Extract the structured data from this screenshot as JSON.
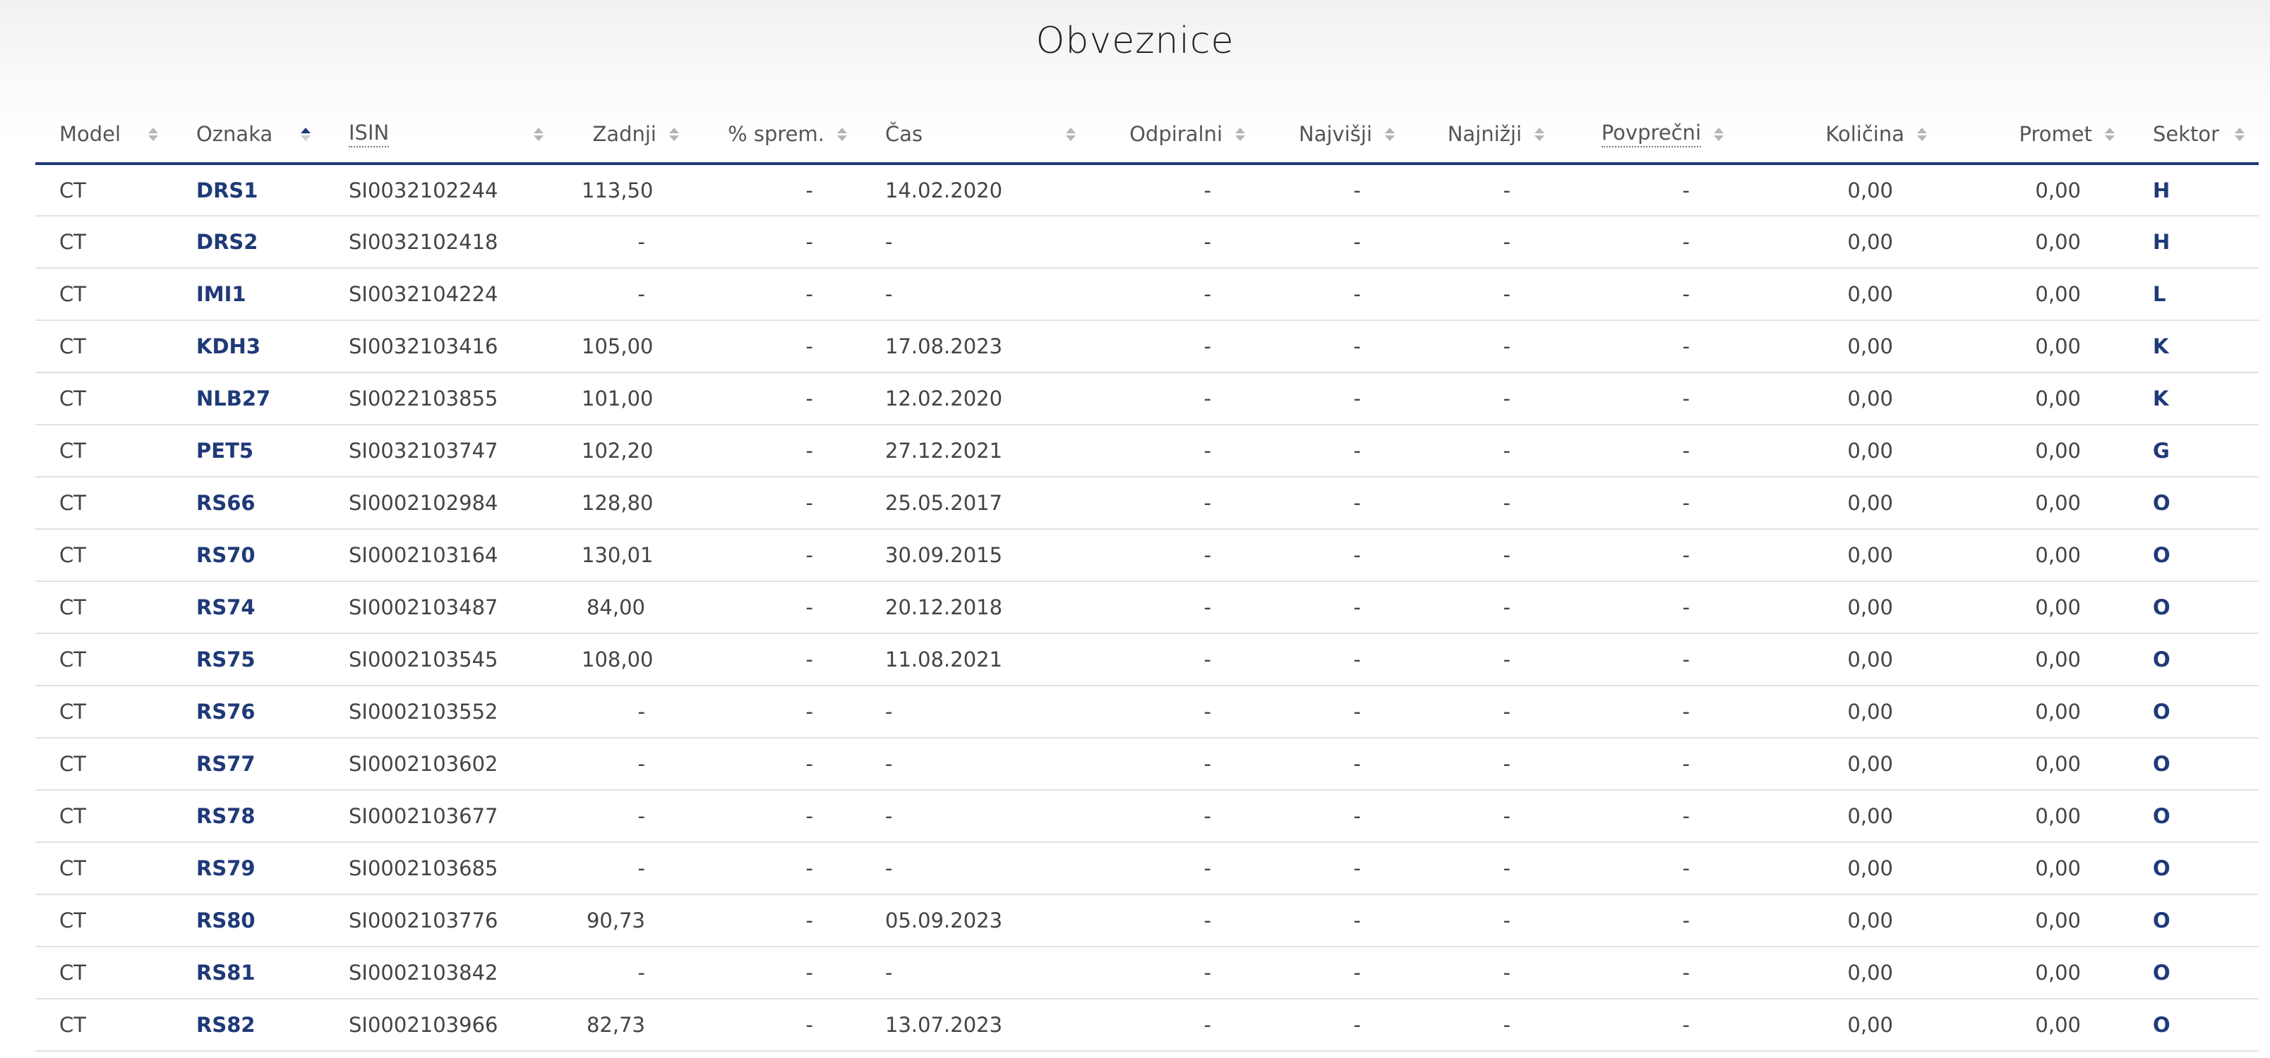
{
  "page": {
    "title": "Obveznice"
  },
  "table": {
    "columns": [
      {
        "key": "model",
        "label": "Model",
        "align": "left",
        "abbr": false,
        "sort": "none"
      },
      {
        "key": "oznaka",
        "label": "Oznaka",
        "align": "left",
        "abbr": false,
        "sort": "asc"
      },
      {
        "key": "isin",
        "label": "ISIN",
        "align": "left",
        "abbr": true,
        "sort": "none"
      },
      {
        "key": "zadnji",
        "label": "Zadnji",
        "align": "right",
        "abbr": false,
        "sort": "none"
      },
      {
        "key": "sprem",
        "label": "% sprem.",
        "align": "right",
        "abbr": false,
        "sort": "none"
      },
      {
        "key": "cas",
        "label": "Čas",
        "align": "left",
        "abbr": false,
        "sort": "none"
      },
      {
        "key": "odpiralni",
        "label": "Odpiralni",
        "align": "right",
        "abbr": false,
        "sort": "none"
      },
      {
        "key": "najvisji",
        "label": "Najvišji",
        "align": "right",
        "abbr": false,
        "sort": "none"
      },
      {
        "key": "najnizji",
        "label": "Najnižji",
        "align": "right",
        "abbr": false,
        "sort": "none"
      },
      {
        "key": "povprecni",
        "label": "Povprečni",
        "align": "right",
        "abbr": true,
        "sort": "none"
      },
      {
        "key": "kolicina",
        "label": "Količina",
        "align": "right",
        "abbr": false,
        "sort": "none"
      },
      {
        "key": "promet",
        "label": "Promet",
        "align": "right",
        "abbr": false,
        "sort": "none"
      },
      {
        "key": "sektor",
        "label": "Sektor",
        "align": "left",
        "abbr": false,
        "sort": "none"
      }
    ],
    "rows": [
      {
        "model": "CT",
        "oznaka": "DRS1",
        "isin": "SI0032102244",
        "zadnji": "113,50",
        "sprem": "-",
        "cas": "14.02.2020",
        "odpiralni": "-",
        "najvisji": "-",
        "najnizji": "-",
        "povprecni": "-",
        "kolicina": "0,00",
        "promet": "0,00",
        "sektor": "H"
      },
      {
        "model": "CT",
        "oznaka": "DRS2",
        "isin": "SI0032102418",
        "zadnji": "-",
        "sprem": "-",
        "cas": "-",
        "odpiralni": "-",
        "najvisji": "-",
        "najnizji": "-",
        "povprecni": "-",
        "kolicina": "0,00",
        "promet": "0,00",
        "sektor": "H"
      },
      {
        "model": "CT",
        "oznaka": "IMI1",
        "isin": "SI0032104224",
        "zadnji": "-",
        "sprem": "-",
        "cas": "-",
        "odpiralni": "-",
        "najvisji": "-",
        "najnizji": "-",
        "povprecni": "-",
        "kolicina": "0,00",
        "promet": "0,00",
        "sektor": "L"
      },
      {
        "model": "CT",
        "oznaka": "KDH3",
        "isin": "SI0032103416",
        "zadnji": "105,00",
        "sprem": "-",
        "cas": "17.08.2023",
        "odpiralni": "-",
        "najvisji": "-",
        "najnizji": "-",
        "povprecni": "-",
        "kolicina": "0,00",
        "promet": "0,00",
        "sektor": "K"
      },
      {
        "model": "CT",
        "oznaka": "NLB27",
        "isin": "SI0022103855",
        "zadnji": "101,00",
        "sprem": "-",
        "cas": "12.02.2020",
        "odpiralni": "-",
        "najvisji": "-",
        "najnizji": "-",
        "povprecni": "-",
        "kolicina": "0,00",
        "promet": "0,00",
        "sektor": "K"
      },
      {
        "model": "CT",
        "oznaka": "PET5",
        "isin": "SI0032103747",
        "zadnji": "102,20",
        "sprem": "-",
        "cas": "27.12.2021",
        "odpiralni": "-",
        "najvisji": "-",
        "najnizji": "-",
        "povprecni": "-",
        "kolicina": "0,00",
        "promet": "0,00",
        "sektor": "G"
      },
      {
        "model": "CT",
        "oznaka": "RS66",
        "isin": "SI0002102984",
        "zadnji": "128,80",
        "sprem": "-",
        "cas": "25.05.2017",
        "odpiralni": "-",
        "najvisji": "-",
        "najnizji": "-",
        "povprecni": "-",
        "kolicina": "0,00",
        "promet": "0,00",
        "sektor": "O"
      },
      {
        "model": "CT",
        "oznaka": "RS70",
        "isin": "SI0002103164",
        "zadnji": "130,01",
        "sprem": "-",
        "cas": "30.09.2015",
        "odpiralni": "-",
        "najvisji": "-",
        "najnizji": "-",
        "povprecni": "-",
        "kolicina": "0,00",
        "promet": "0,00",
        "sektor": "O"
      },
      {
        "model": "CT",
        "oznaka": "RS74",
        "isin": "SI0002103487",
        "zadnji": "84,00",
        "sprem": "-",
        "cas": "20.12.2018",
        "odpiralni": "-",
        "najvisji": "-",
        "najnizji": "-",
        "povprecni": "-",
        "kolicina": "0,00",
        "promet": "0,00",
        "sektor": "O"
      },
      {
        "model": "CT",
        "oznaka": "RS75",
        "isin": "SI0002103545",
        "zadnji": "108,00",
        "sprem": "-",
        "cas": "11.08.2021",
        "odpiralni": "-",
        "najvisji": "-",
        "najnizji": "-",
        "povprecni": "-",
        "kolicina": "0,00",
        "promet": "0,00",
        "sektor": "O"
      },
      {
        "model": "CT",
        "oznaka": "RS76",
        "isin": "SI0002103552",
        "zadnji": "-",
        "sprem": "-",
        "cas": "-",
        "odpiralni": "-",
        "najvisji": "-",
        "najnizji": "-",
        "povprecni": "-",
        "kolicina": "0,00",
        "promet": "0,00",
        "sektor": "O"
      },
      {
        "model": "CT",
        "oznaka": "RS77",
        "isin": "SI0002103602",
        "zadnji": "-",
        "sprem": "-",
        "cas": "-",
        "odpiralni": "-",
        "najvisji": "-",
        "najnizji": "-",
        "povprecni": "-",
        "kolicina": "0,00",
        "promet": "0,00",
        "sektor": "O"
      },
      {
        "model": "CT",
        "oznaka": "RS78",
        "isin": "SI0002103677",
        "zadnji": "-",
        "sprem": "-",
        "cas": "-",
        "odpiralni": "-",
        "najvisji": "-",
        "najnizji": "-",
        "povprecni": "-",
        "kolicina": "0,00",
        "promet": "0,00",
        "sektor": "O"
      },
      {
        "model": "CT",
        "oznaka": "RS79",
        "isin": "SI0002103685",
        "zadnji": "-",
        "sprem": "-",
        "cas": "-",
        "odpiralni": "-",
        "najvisji": "-",
        "najnizji": "-",
        "povprecni": "-",
        "kolicina": "0,00",
        "promet": "0,00",
        "sektor": "O"
      },
      {
        "model": "CT",
        "oznaka": "RS80",
        "isin": "SI0002103776",
        "zadnji": "90,73",
        "sprem": "-",
        "cas": "05.09.2023",
        "odpiralni": "-",
        "najvisji": "-",
        "najnizji": "-",
        "povprecni": "-",
        "kolicina": "0,00",
        "promet": "0,00",
        "sektor": "O"
      },
      {
        "model": "CT",
        "oznaka": "RS81",
        "isin": "SI0002103842",
        "zadnji": "-",
        "sprem": "-",
        "cas": "-",
        "odpiralni": "-",
        "najvisji": "-",
        "najnizji": "-",
        "povprecni": "-",
        "kolicina": "0,00",
        "promet": "0,00",
        "sektor": "O"
      },
      {
        "model": "CT",
        "oznaka": "RS82",
        "isin": "SI0002103966",
        "zadnji": "82,73",
        "sprem": "-",
        "cas": "13.07.2023",
        "odpiralni": "-",
        "najvisji": "-",
        "najnizji": "-",
        "povprecni": "-",
        "kolicina": "0,00",
        "promet": "0,00",
        "sektor": "O"
      }
    ]
  },
  "colors": {
    "accent": "#1f3a78",
    "header_border": "#1f3a78",
    "row_border": "#e2e2e2"
  }
}
